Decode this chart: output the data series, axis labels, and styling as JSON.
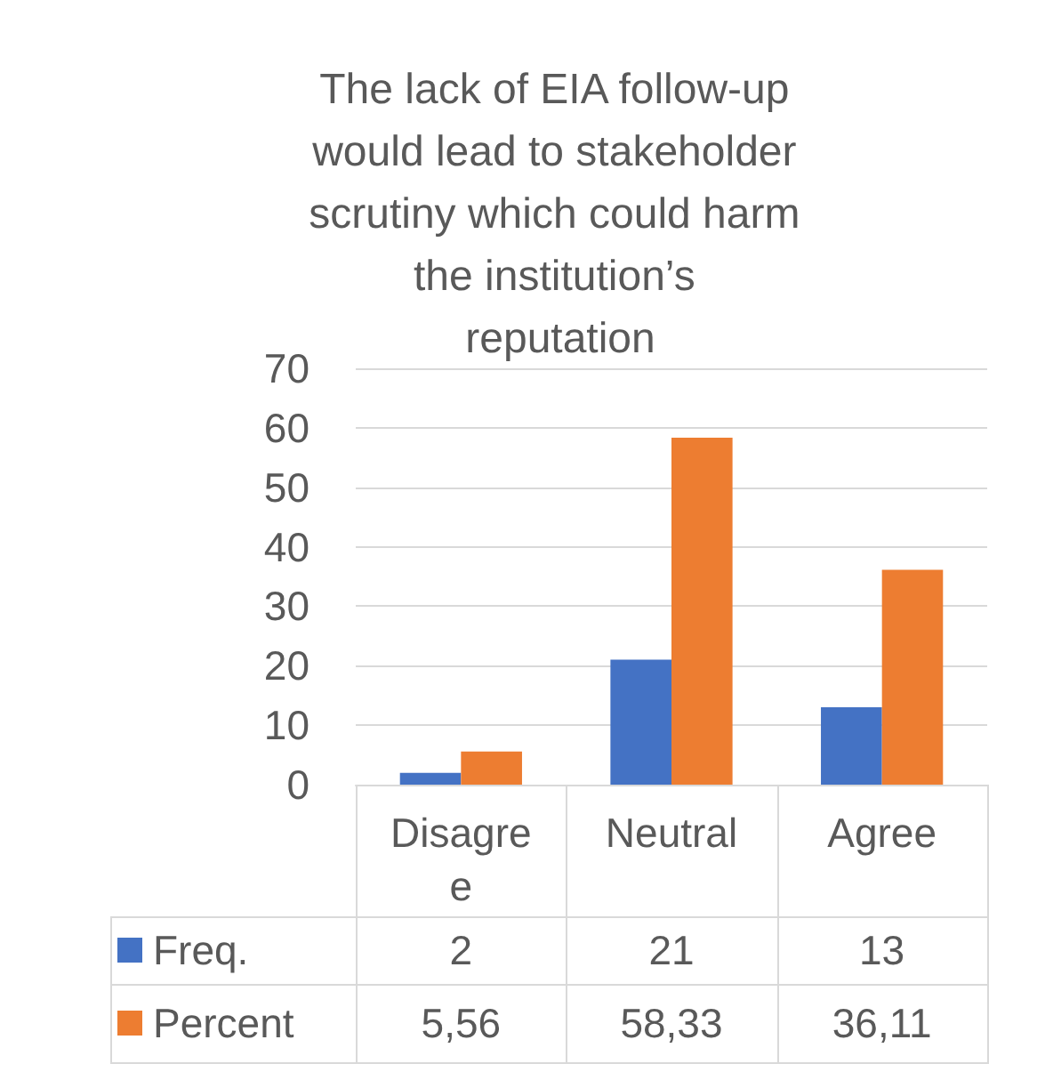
{
  "chart_data": {
    "type": "bar",
    "title": "The lack of EIA follow-up would lead to stakeholder scrutiny which could harm the institution’s reputation",
    "categories": [
      "Disagree",
      "Neutral",
      "Agree"
    ],
    "series": [
      {
        "name": "Freq.",
        "color": "#4472c4",
        "values": [
          2,
          21,
          13
        ],
        "value_labels": [
          "2",
          "21",
          "13"
        ]
      },
      {
        "name": "Percent",
        "color": "#ed7d31",
        "values": [
          5.56,
          58.33,
          36.11
        ],
        "value_labels": [
          "5,56",
          "58,33",
          "36,11"
        ]
      }
    ],
    "ylim": [
      0,
      70
    ],
    "yticks": [
      0,
      10,
      20,
      30,
      40,
      50,
      60,
      70
    ],
    "grid": "y",
    "legend": "bottom"
  }
}
